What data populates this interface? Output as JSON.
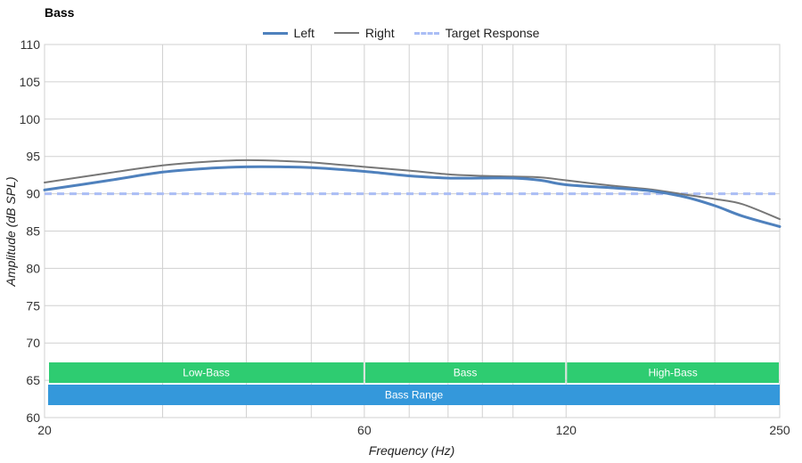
{
  "chart_data": {
    "type": "line",
    "title": "Bass",
    "xlabel": "Frequency (Hz)",
    "ylabel": "Amplitude (dB SPL)",
    "x_scale": "log",
    "xlim": [
      20,
      250
    ],
    "ylim": [
      60,
      110
    ],
    "x_tick_labels": [
      "20",
      "60",
      "120",
      "250"
    ],
    "x_ticks": [
      20,
      60,
      120,
      250
    ],
    "x_minor_grid": [
      30,
      40,
      50,
      70,
      80,
      90,
      100,
      200
    ],
    "y_ticks": [
      60,
      65,
      70,
      75,
      80,
      85,
      90,
      95,
      100,
      105,
      110
    ],
    "grid": true,
    "legend_position": "top-center",
    "series": [
      {
        "name": "Left",
        "color": "#4f81bd",
        "x": [
          20,
          25,
          30,
          35,
          40,
          45,
          50,
          60,
          70,
          80,
          90,
          100,
          110,
          120,
          140,
          160,
          180,
          200,
          220,
          250
        ],
        "y": [
          90.5,
          91.8,
          92.9,
          93.4,
          93.6,
          93.6,
          93.5,
          93.0,
          92.4,
          92.1,
          92.1,
          92.1,
          91.8,
          91.2,
          90.8,
          90.4,
          89.6,
          88.4,
          87.0,
          85.6
        ]
      },
      {
        "name": "Right",
        "color": "#777777",
        "x": [
          20,
          25,
          30,
          35,
          40,
          45,
          50,
          60,
          70,
          80,
          90,
          100,
          110,
          120,
          140,
          160,
          180,
          200,
          220,
          250
        ],
        "y": [
          91.5,
          92.8,
          93.8,
          94.3,
          94.5,
          94.4,
          94.2,
          93.6,
          93.1,
          92.6,
          92.4,
          92.3,
          92.2,
          91.8,
          91.1,
          90.6,
          89.9,
          89.3,
          88.6,
          86.6
        ]
      },
      {
        "name": "Target Response",
        "color": "#aabdf5",
        "dashed": true,
        "x": [
          20,
          250
        ],
        "y": [
          90,
          90
        ]
      }
    ],
    "bands": [
      {
        "label": "Low-Bass",
        "from": 20,
        "to": 60,
        "color": "#2ecc71"
      },
      {
        "label": "Bass",
        "from": 60,
        "to": 120,
        "color": "#2ecc71"
      },
      {
        "label": "High-Bass",
        "from": 120,
        "to": 250,
        "color": "#2ecc71"
      },
      {
        "label": "Bass Range",
        "from": 20,
        "to": 250,
        "color": "#3498db"
      }
    ]
  }
}
